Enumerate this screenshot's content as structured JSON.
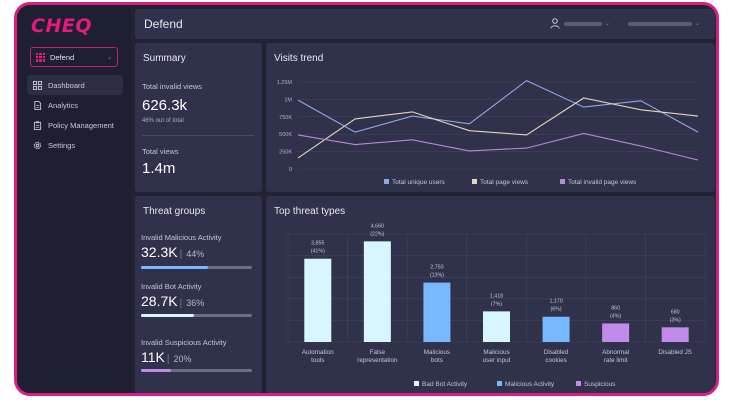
{
  "brand": {
    "logo": "CHEQ",
    "accent": "#e5197f"
  },
  "sidebar": {
    "product": "Defend",
    "items": [
      {
        "label": "Dashboard",
        "icon": "dashboard-icon"
      },
      {
        "label": "Analytics",
        "icon": "document-icon"
      },
      {
        "label": "Policy Management",
        "icon": "clipboard-icon"
      },
      {
        "label": "Settings",
        "icon": "gear-icon"
      }
    ]
  },
  "header": {
    "title": "Defend"
  },
  "summary": {
    "title": "Summary",
    "invalid_label": "Total invalid views",
    "invalid_value": "626.3k",
    "invalid_sub": "46% out of total",
    "total_label": "Total views",
    "total_value": "1.4m"
  },
  "threat_groups": {
    "title": "Threat groups",
    "items": [
      {
        "label": "Invalid Malicious Activity",
        "value": "32.3K",
        "pct": "44%",
        "fill": 0.6,
        "color": "#78b8ff"
      },
      {
        "label": "Invalid Bot Activity",
        "value": "28.7K",
        "pct": "36%",
        "fill": 0.48,
        "color": "#d8f6ff"
      },
      {
        "label": "Invalid Suspicious Activity",
        "value": "11K",
        "pct": "20%",
        "fill": 0.27,
        "color": "#c08ae8"
      }
    ]
  },
  "chart_data": [
    {
      "type": "line",
      "title": "Visits trend",
      "x": [
        1,
        2,
        3,
        4,
        5,
        6,
        7,
        8
      ],
      "ylim": [
        0,
        1250000
      ],
      "yticks": [
        "1.25M",
        "1M",
        "750K",
        "500K",
        "250K",
        "0"
      ],
      "series": [
        {
          "name": "Total unique users",
          "color": "#8ea9e6",
          "values": [
            990000,
            530000,
            760000,
            650000,
            1270000,
            890000,
            980000,
            530000
          ]
        },
        {
          "name": "Total page views",
          "color": "#e3d9b4",
          "values": [
            160000,
            720000,
            820000,
            550000,
            490000,
            1020000,
            850000,
            760000
          ]
        },
        {
          "name": "Total invalid page views",
          "color": "#b48ad9",
          "values": [
            490000,
            350000,
            420000,
            260000,
            300000,
            510000,
            330000,
            130000
          ]
        }
      ]
    },
    {
      "type": "bar",
      "title": "Top threat types",
      "categories": [
        "Automation tools",
        "False representation",
        "Malicious bots",
        "Malicious user input",
        "Disabled cookies",
        "Abnormal rate limit",
        "Disabled JS"
      ],
      "values": [
        3855,
        4660,
        2750,
        1418,
        1170,
        860,
        680
      ],
      "labels": [
        [
          "3,855",
          "(41%)"
        ],
        [
          "4,660",
          "(22%)"
        ],
        [
          "2,750",
          "(13%)"
        ],
        [
          "1,418",
          "(7%)"
        ],
        [
          "1,170",
          "(6%)"
        ],
        [
          "860",
          "(4%)"
        ],
        [
          "680",
          "(3%)"
        ]
      ],
      "groups": [
        "bot",
        "bot",
        "malicious",
        "bot",
        "malicious",
        "suspicious",
        "suspicious"
      ],
      "ylim": [
        0,
        5000
      ],
      "legend": [
        {
          "name": "Bad Bot Activity",
          "key": "bot",
          "color": "#d8f6ff"
        },
        {
          "name": "Malicious Activity",
          "key": "malicious",
          "color": "#78b8ff"
        },
        {
          "name": "Suspicious",
          "key": "suspicious",
          "color": "#c08ae8"
        }
      ]
    }
  ]
}
